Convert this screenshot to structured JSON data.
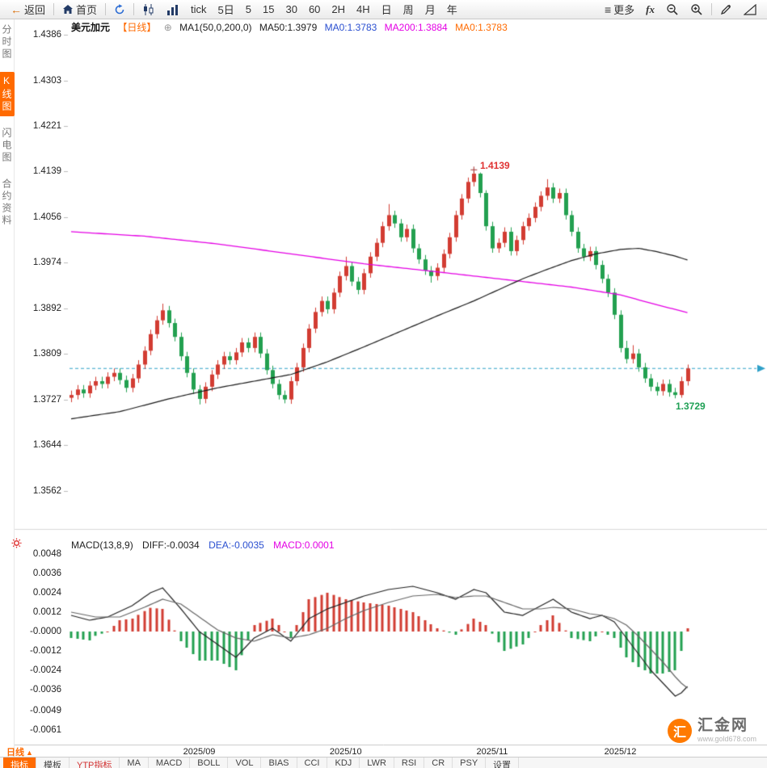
{
  "toolbar": {
    "items": [
      {
        "name": "back-button",
        "icon": "arrow-left-icon",
        "label": "返回"
      },
      {
        "type": "separator"
      },
      {
        "name": "home-button",
        "icon": "home-icon",
        "label": "首页"
      },
      {
        "type": "separator"
      },
      {
        "name": "refresh-button",
        "icon": "refresh-icon"
      },
      {
        "type": "separator"
      },
      {
        "name": "chart-style-candle-button",
        "icon": "candlestick-icon"
      },
      {
        "name": "chart-style-volume-button",
        "icon": "volume-bars-icon"
      },
      {
        "name": "interval-tick-button",
        "label": "tick"
      },
      {
        "name": "interval-5day-button",
        "label": "5日"
      },
      {
        "name": "interval-5-button",
        "label": "5"
      },
      {
        "name": "interval-15-button",
        "label": "15"
      },
      {
        "name": "interval-30-button",
        "label": "30"
      },
      {
        "name": "interval-60-button",
        "label": "60"
      },
      {
        "name": "interval-2h-button",
        "label": "2H"
      },
      {
        "name": "interval-4h-button",
        "label": "4H"
      },
      {
        "name": "interval-day-button",
        "label": "日"
      },
      {
        "name": "interval-week-button",
        "label": "周"
      },
      {
        "name": "interval-month-button",
        "label": "月"
      },
      {
        "name": "interval-year-button",
        "label": "年"
      },
      {
        "type": "spacer"
      },
      {
        "name": "more-button",
        "icon": "menu-icon",
        "label": "更多"
      },
      {
        "name": "fx-button",
        "label": "fx",
        "style": "fx"
      },
      {
        "name": "zoom-out-button",
        "icon": "zoom-out-icon"
      },
      {
        "name": "zoom-in-button",
        "icon": "zoom-in-icon"
      },
      {
        "type": "separator"
      },
      {
        "name": "draw-button",
        "icon": "pencil-icon"
      },
      {
        "name": "shapes-button",
        "icon": "triangle-ruler-icon"
      }
    ]
  },
  "sidebar": {
    "items": [
      {
        "name": "sidebar-item-timeshare",
        "label": "分时图",
        "active": false
      },
      {
        "name": "sidebar-item-kline",
        "label": "K线图",
        "active": true
      },
      {
        "name": "sidebar-item-lightning",
        "label": "闪电图",
        "active": false
      },
      {
        "name": "sidebar-item-contract-info",
        "label": "合约资料",
        "active": false
      }
    ]
  },
  "chart_header": {
    "symbol": "美元加元",
    "period": "【日线】",
    "plus_icon": "⊕",
    "ma_settings": "MA1(50,0,200,0)",
    "ma50": "MA50:1.3979",
    "ma0_blue": "MA0:1.3783",
    "ma200": "MA200:1.3884",
    "ma0_orange": "MA0:1.3783"
  },
  "macd_header": {
    "title": "MACD(13,8,9)",
    "diff": "DIFF:-0.0034",
    "dea": "DEA:-0.0035",
    "macd": "MACD:0.0001"
  },
  "annotations": {
    "high": "1.4139",
    "low": "1.3729"
  },
  "bottom_bar": {
    "period_label": "日线",
    "period_arrow": "▲",
    "tabs": [
      {
        "label": "指标",
        "active": true
      },
      {
        "label": "模板"
      },
      {
        "label": "YTP指标",
        "highlight": true
      },
      {
        "label": "MA"
      },
      {
        "label": "MACD"
      },
      {
        "label": "BOLL"
      },
      {
        "label": "VOL"
      },
      {
        "label": "BIAS"
      },
      {
        "label": "CCI"
      },
      {
        "label": "KDJ"
      },
      {
        "label": "LWR"
      },
      {
        "label": "RSI"
      },
      {
        "label": "CR"
      },
      {
        "label": "PSY"
      },
      {
        "label": "设置"
      }
    ]
  },
  "watermark": {
    "logo_char": "汇",
    "brand": "汇金网",
    "url": "www.gold678.com"
  },
  "colors": {
    "accent": "#ff6a00",
    "up": "#d23c32",
    "down": "#23a050",
    "ma50": "#1a1a1a",
    "ma200": "#e400e4",
    "dashed_line": "#2fa0c8",
    "blue_text": "#2a4fd0",
    "magenta_text": "#e400e4",
    "macd_diff": "#222222",
    "macd_dea": "#666666"
  },
  "chart_data": {
    "type": "candlestick",
    "symbol": "美元加元",
    "period": "日线",
    "ylim": [
      1.3493,
      1.4386
    ],
    "y_ticks": [
      "1.4386",
      "1.4303",
      "1.4221",
      "1.4139",
      "1.4056",
      "1.3974",
      "1.3892",
      "1.3809",
      "1.3727",
      "1.3644",
      "1.3562"
    ],
    "x_ticks": [
      {
        "label": "2025/09",
        "index": 21
      },
      {
        "label": "2025/10",
        "index": 45
      },
      {
        "label": "2025/11",
        "index": 69
      },
      {
        "label": "2025/12",
        "index": 90
      }
    ],
    "current_price": 1.3783,
    "high_marker": {
      "index": 66,
      "price": 1.4139,
      "label": "1.4139"
    },
    "low_marker": {
      "index": 99,
      "price": 1.3729,
      "label": "1.3729"
    },
    "candles": [
      [
        1.373,
        1.3743,
        1.3722,
        1.3735
      ],
      [
        1.3735,
        1.3753,
        1.3727,
        1.3745
      ],
      [
        1.3745,
        1.3753,
        1.373,
        1.3738
      ],
      [
        1.3738,
        1.376,
        1.373,
        1.3752
      ],
      [
        1.3752,
        1.3768,
        1.3744,
        1.376
      ],
      [
        1.376,
        1.3768,
        1.3747,
        1.3755
      ],
      [
        1.3755,
        1.3776,
        1.3747,
        1.3768
      ],
      [
        1.3768,
        1.3783,
        1.376,
        1.3775
      ],
      [
        1.3775,
        1.3783,
        1.3754,
        1.3762
      ],
      [
        1.3762,
        1.377,
        1.374,
        1.3748
      ],
      [
        1.3748,
        1.3773,
        1.374,
        1.3765
      ],
      [
        1.3765,
        1.3798,
        1.3757,
        1.379
      ],
      [
        1.379,
        1.3823,
        1.3782,
        1.3815
      ],
      [
        1.3815,
        1.3853,
        1.3807,
        1.3845
      ],
      [
        1.3845,
        1.3878,
        1.3837,
        1.387
      ],
      [
        1.387,
        1.39,
        1.3862,
        1.3888
      ],
      [
        1.3888,
        1.3896,
        1.3857,
        1.3865
      ],
      [
        1.3865,
        1.3873,
        1.3832,
        1.384
      ],
      [
        1.384,
        1.3848,
        1.3797,
        1.3805
      ],
      [
        1.3805,
        1.3813,
        1.3767,
        1.3775
      ],
      [
        1.3775,
        1.3783,
        1.3737,
        1.3745
      ],
      [
        1.3745,
        1.3753,
        1.3718,
        1.3728
      ],
      [
        1.3728,
        1.3758,
        1.372,
        1.375
      ],
      [
        1.375,
        1.378,
        1.3742,
        1.3772
      ],
      [
        1.3772,
        1.3798,
        1.3764,
        1.379
      ],
      [
        1.379,
        1.3813,
        1.3782,
        1.3805
      ],
      [
        1.3805,
        1.3813,
        1.379,
        1.3798
      ],
      [
        1.3798,
        1.382,
        1.379,
        1.3812
      ],
      [
        1.3812,
        1.3838,
        1.3804,
        1.383
      ],
      [
        1.383,
        1.3838,
        1.3812,
        1.382
      ],
      [
        1.382,
        1.3848,
        1.3812,
        1.384
      ],
      [
        1.384,
        1.3848,
        1.3802,
        1.381
      ],
      [
        1.381,
        1.3818,
        1.3772,
        1.378
      ],
      [
        1.378,
        1.3788,
        1.3747,
        1.3755
      ],
      [
        1.3755,
        1.3763,
        1.3727,
        1.3735
      ],
      [
        1.3735,
        1.3743,
        1.372,
        1.3727
      ],
      [
        1.3727,
        1.3768,
        1.3719,
        1.376
      ],
      [
        1.376,
        1.3793,
        1.3752,
        1.3785
      ],
      [
        1.3785,
        1.3828,
        1.3777,
        1.382
      ],
      [
        1.382,
        1.3863,
        1.3812,
        1.3855
      ],
      [
        1.3855,
        1.3893,
        1.3847,
        1.3885
      ],
      [
        1.3885,
        1.3913,
        1.3877,
        1.3905
      ],
      [
        1.3905,
        1.3913,
        1.3882,
        1.389
      ],
      [
        1.389,
        1.3928,
        1.3882,
        1.392
      ],
      [
        1.392,
        1.3958,
        1.3912,
        1.395
      ],
      [
        1.395,
        1.3985,
        1.3942,
        1.3968
      ],
      [
        1.3968,
        1.3976,
        1.3932,
        1.394
      ],
      [
        1.394,
        1.3948,
        1.3917,
        1.3925
      ],
      [
        1.3925,
        1.3963,
        1.3917,
        1.3955
      ],
      [
        1.3955,
        1.3993,
        1.3947,
        1.3985
      ],
      [
        1.3985,
        1.4018,
        1.3977,
        1.401
      ],
      [
        1.401,
        1.4048,
        1.4002,
        1.404
      ],
      [
        1.404,
        1.408,
        1.4032,
        1.406
      ],
      [
        1.406,
        1.4068,
        1.4037,
        1.4045
      ],
      [
        1.4045,
        1.4053,
        1.4012,
        1.402
      ],
      [
        1.402,
        1.4043,
        1.4012,
        1.4035
      ],
      [
        1.4035,
        1.4043,
        1.3992,
        1.4
      ],
      [
        1.4,
        1.4008,
        1.3972,
        1.398
      ],
      [
        1.398,
        1.3988,
        1.3952,
        1.396
      ],
      [
        1.396,
        1.3968,
        1.3938,
        1.395
      ],
      [
        1.395,
        1.3973,
        1.3942,
        1.3965
      ],
      [
        1.3965,
        1.3998,
        1.3957,
        1.399
      ],
      [
        1.399,
        1.4028,
        1.3982,
        1.402
      ],
      [
        1.402,
        1.4068,
        1.4012,
        1.406
      ],
      [
        1.406,
        1.4098,
        1.4052,
        1.409
      ],
      [
        1.409,
        1.4128,
        1.4082,
        1.412
      ],
      [
        1.412,
        1.4139,
        1.4112,
        1.4135
      ],
      [
        1.4135,
        1.4137,
        1.4092,
        1.41
      ],
      [
        1.41,
        1.4105,
        1.4032,
        1.404
      ],
      [
        1.404,
        1.4048,
        1.3992,
        1.4
      ],
      [
        1.4,
        1.4018,
        1.3992,
        1.401
      ],
      [
        1.401,
        1.4038,
        1.4002,
        1.403
      ],
      [
        1.403,
        1.4038,
        1.3987,
        1.3995
      ],
      [
        1.3995,
        1.4023,
        1.3987,
        1.4015
      ],
      [
        1.4015,
        1.4048,
        1.4007,
        1.404
      ],
      [
        1.404,
        1.4063,
        1.4032,
        1.4055
      ],
      [
        1.4055,
        1.4083,
        1.4047,
        1.4075
      ],
      [
        1.4075,
        1.4103,
        1.4067,
        1.4095
      ],
      [
        1.4095,
        1.4125,
        1.4087,
        1.411
      ],
      [
        1.411,
        1.4118,
        1.4082,
        1.409
      ],
      [
        1.409,
        1.4108,
        1.4082,
        1.41
      ],
      [
        1.41,
        1.4108,
        1.4052,
        1.406
      ],
      [
        1.406,
        1.4068,
        1.4022,
        1.403
      ],
      [
        1.403,
        1.4038,
        1.3992,
        1.4
      ],
      [
        1.4,
        1.4008,
        1.3977,
        1.3985
      ],
      [
        1.3985,
        1.4003,
        1.3977,
        1.3995
      ],
      [
        1.3995,
        1.4003,
        1.3962,
        1.397
      ],
      [
        1.397,
        1.3978,
        1.3937,
        1.3945
      ],
      [
        1.3945,
        1.3953,
        1.3912,
        1.392
      ],
      [
        1.392,
        1.3928,
        1.3872,
        1.388
      ],
      [
        1.388,
        1.3888,
        1.3812,
        1.382
      ],
      [
        1.382,
        1.3833,
        1.3792,
        1.38
      ],
      [
        1.38,
        1.3825,
        1.3792,
        1.381
      ],
      [
        1.381,
        1.3818,
        1.3777,
        1.3785
      ],
      [
        1.3785,
        1.3793,
        1.3757,
        1.3765
      ],
      [
        1.3765,
        1.3773,
        1.3742,
        1.375
      ],
      [
        1.375,
        1.3758,
        1.3734,
        1.3742
      ],
      [
        1.3742,
        1.3763,
        1.3734,
        1.3755
      ],
      [
        1.3755,
        1.3763,
        1.3732,
        1.374
      ],
      [
        1.374,
        1.3748,
        1.3729,
        1.3735
      ],
      [
        1.3735,
        1.3768,
        1.373,
        1.376
      ],
      [
        1.376,
        1.379,
        1.3752,
        1.3783
      ]
    ],
    "ma200_points": [
      [
        0,
        1.403
      ],
      [
        12,
        1.4022
      ],
      [
        24,
        1.4008
      ],
      [
        36,
        1.399
      ],
      [
        48,
        1.3972
      ],
      [
        58,
        1.396
      ],
      [
        66,
        1.395
      ],
      [
        74,
        1.394
      ],
      [
        82,
        1.393
      ],
      [
        90,
        1.3916
      ],
      [
        96,
        1.3898
      ],
      [
        101,
        1.3884
      ]
    ],
    "ma50_points": [
      [
        0,
        1.3692
      ],
      [
        8,
        1.3705
      ],
      [
        16,
        1.3728
      ],
      [
        24,
        1.3748
      ],
      [
        30,
        1.376
      ],
      [
        36,
        1.3772
      ],
      [
        42,
        1.3795
      ],
      [
        48,
        1.3822
      ],
      [
        54,
        1.385
      ],
      [
        60,
        1.3878
      ],
      [
        66,
        1.3905
      ],
      [
        70,
        1.3925
      ],
      [
        74,
        1.3945
      ],
      [
        78,
        1.3962
      ],
      [
        82,
        1.3978
      ],
      [
        86,
        1.399
      ],
      [
        90,
        1.3998
      ],
      [
        93,
        1.4
      ],
      [
        96,
        1.3994
      ],
      [
        99,
        1.3986
      ],
      [
        101,
        1.3979
      ]
    ],
    "macd": {
      "params": "(13,8,9)",
      "ylim": [
        -0.0064,
        0.0051
      ],
      "y_ticks": [
        "0.0048",
        "0.0036",
        "0.0024",
        "0.0012",
        "-0.0000",
        "-0.0012",
        "-0.0024",
        "-0.0036",
        "-0.0049",
        "-0.0061"
      ],
      "last": {
        "diff": -0.0034,
        "dea": -0.0035,
        "macd": 0.0001
      },
      "diff_points": [
        [
          0,
          0.001
        ],
        [
          3,
          0.0007
        ],
        [
          6,
          0.0009
        ],
        [
          10,
          0.0016
        ],
        [
          13,
          0.0024
        ],
        [
          15,
          0.0027
        ],
        [
          18,
          0.0014
        ],
        [
          21,
          0.0
        ],
        [
          24,
          -0.0008
        ],
        [
          27,
          -0.0016
        ],
        [
          30,
          -0.0004
        ],
        [
          33,
          0.0002
        ],
        [
          36,
          -0.0006
        ],
        [
          39,
          0.0008
        ],
        [
          42,
          0.0014
        ],
        [
          45,
          0.0018
        ],
        [
          48,
          0.0022
        ],
        [
          52,
          0.0026
        ],
        [
          56,
          0.0028
        ],
        [
          60,
          0.0024
        ],
        [
          63,
          0.002
        ],
        [
          66,
          0.0026
        ],
        [
          68,
          0.0024
        ],
        [
          71,
          0.0012
        ],
        [
          74,
          0.001
        ],
        [
          77,
          0.0016
        ],
        [
          79,
          0.002
        ],
        [
          82,
          0.0012
        ],
        [
          85,
          0.0008
        ],
        [
          87,
          0.001
        ],
        [
          89,
          0.0006
        ],
        [
          91,
          -0.0004
        ],
        [
          93,
          -0.0014
        ],
        [
          95,
          -0.0024
        ],
        [
          97,
          -0.0032
        ],
        [
          99,
          -0.004
        ],
        [
          100,
          -0.0038
        ],
        [
          101,
          -0.0034
        ]
      ],
      "dea_points": [
        [
          0,
          0.0012
        ],
        [
          4,
          0.0009
        ],
        [
          8,
          0.0009
        ],
        [
          12,
          0.0015
        ],
        [
          15,
          0.002
        ],
        [
          18,
          0.0017
        ],
        [
          21,
          0.0009
        ],
        [
          24,
          0.0001
        ],
        [
          27,
          -0.0004
        ],
        [
          30,
          -0.0006
        ],
        [
          33,
          -0.0002
        ],
        [
          36,
          -0.0004
        ],
        [
          39,
          -0.0002
        ],
        [
          42,
          0.0002
        ],
        [
          45,
          0.0008
        ],
        [
          48,
          0.0013
        ],
        [
          52,
          0.0018
        ],
        [
          56,
          0.0022
        ],
        [
          60,
          0.0023
        ],
        [
          63,
          0.0021
        ],
        [
          66,
          0.0022
        ],
        [
          68,
          0.0022
        ],
        [
          71,
          0.0018
        ],
        [
          74,
          0.0014
        ],
        [
          77,
          0.0014
        ],
        [
          79,
          0.0015
        ],
        [
          82,
          0.0014
        ],
        [
          85,
          0.0011
        ],
        [
          87,
          0.001
        ],
        [
          89,
          0.0008
        ],
        [
          91,
          0.0004
        ],
        [
          93,
          -0.0003
        ],
        [
          95,
          -0.0011
        ],
        [
          97,
          -0.0019
        ],
        [
          99,
          -0.0028
        ],
        [
          100,
          -0.0032
        ],
        [
          101,
          -0.0035
        ]
      ]
    }
  }
}
